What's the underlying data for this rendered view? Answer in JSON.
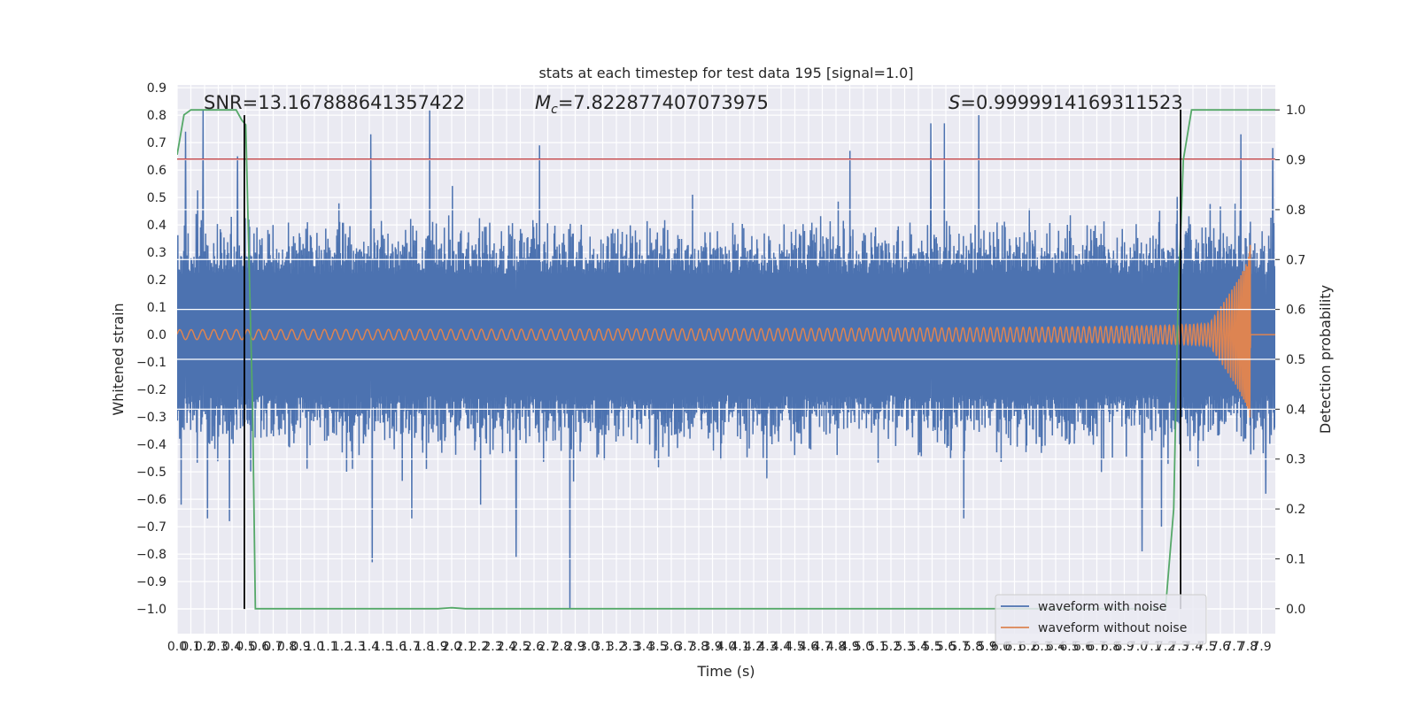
{
  "chart_data": {
    "type": "line",
    "title": "stats at each timestep for test data 195 [signal=1.0]",
    "xlabel": "Time (s)",
    "ylabel": "Whitened strain",
    "ylabel_right": "Detection probability",
    "xlim": [
      0,
      8
    ],
    "ylim": [
      -1.09,
      0.91
    ],
    "ylim_right": [
      -0.05,
      1.05
    ],
    "x_ticks": [
      0.0,
      0.1,
      0.2,
      0.3,
      0.4,
      0.5,
      0.6,
      0.7,
      0.8,
      0.9,
      1.0,
      1.1,
      1.2,
      1.3,
      1.4,
      1.5,
      1.6,
      1.7,
      1.8,
      1.9,
      2.0,
      2.1,
      2.2,
      2.3,
      2.4,
      2.5,
      2.6,
      2.7,
      2.8,
      2.9,
      3.0,
      3.1,
      3.2,
      3.3,
      3.4,
      3.5,
      3.6,
      3.7,
      3.8,
      3.9,
      4.0,
      4.1,
      4.2,
      4.3,
      4.4,
      4.5,
      4.6,
      4.7,
      4.8,
      4.9,
      5.0,
      5.1,
      5.2,
      5.3,
      5.4,
      5.5,
      5.6,
      5.7,
      5.8,
      5.9,
      6.0,
      6.1,
      6.2,
      6.3,
      6.4,
      6.5,
      6.6,
      6.7,
      6.8,
      6.9,
      7.0,
      7.1,
      7.2,
      7.3,
      7.4,
      7.5,
      7.6,
      7.7,
      7.8,
      7.9
    ],
    "y_ticks": [
      "0.9",
      "0.8",
      "0.7",
      "0.6",
      "0.5",
      "0.4",
      "0.3",
      "0.2",
      "0.1",
      "0.0",
      "−0.1",
      "−0.2",
      "−0.3",
      "−0.4",
      "−0.5",
      "−0.6",
      "−0.7",
      "−0.8",
      "−0.9",
      "−1.0"
    ],
    "y_tick_values": [
      0.9,
      0.8,
      0.7,
      0.6,
      0.5,
      0.4,
      0.3,
      0.2,
      0.1,
      0.0,
      -0.1,
      -0.2,
      -0.3,
      -0.4,
      -0.5,
      -0.6,
      -0.7,
      -0.8,
      -0.9,
      -1.0
    ],
    "y_ticks_right": [
      "1.0",
      "0.9",
      "0.8",
      "0.7",
      "0.6",
      "0.5",
      "0.4",
      "0.3",
      "0.2",
      "0.1",
      "0.0"
    ],
    "y_tick_values_right": [
      1.0,
      0.9,
      0.8,
      0.7,
      0.6,
      0.5,
      0.4,
      0.3,
      0.2,
      0.1,
      0.0
    ],
    "grid": true,
    "legend_position": "bottom-right",
    "annotations": {
      "snr": "SNR=13.167888641357422",
      "mc_symbol": "M",
      "mc_sub": "c",
      "mc_value": "=7.822877407073975",
      "s_symbol": "S",
      "s_value": "=0.9999914169311523"
    },
    "threshold": {
      "y": 0.64,
      "color": "#c44e52"
    },
    "vlines": [
      {
        "x": 0.49,
        "y_from": -1.0,
        "y_to": 0.8
      },
      {
        "x": 7.31,
        "y_from": -1.0,
        "y_to": 0.82
      }
    ],
    "series": [
      {
        "name": "waveform with noise",
        "color": "#4c72b0",
        "description": "noisy whitened strain, roughly ±0.45 envelope with spikes",
        "spikes": [
          [
            0.03,
            -0.62
          ],
          [
            0.06,
            0.74
          ],
          [
            0.19,
            0.82
          ],
          [
            0.22,
            -0.67
          ],
          [
            0.38,
            -0.68
          ],
          [
            0.44,
            0.65
          ],
          [
            1.41,
            0.73
          ],
          [
            1.42,
            -0.83
          ],
          [
            1.84,
            0.82
          ],
          [
            1.71,
            -0.67
          ],
          [
            2.47,
            -0.81
          ],
          [
            2.64,
            0.69
          ],
          [
            2.86,
            -1.0
          ],
          [
            4.9,
            0.67
          ],
          [
            5.49,
            0.77
          ],
          [
            5.59,
            0.77
          ],
          [
            5.73,
            -0.67
          ],
          [
            5.84,
            0.8
          ],
          [
            7.03,
            -0.79
          ],
          [
            7.17,
            -0.7
          ],
          [
            7.75,
            0.73
          ],
          [
            7.93,
            -0.58
          ],
          [
            7.98,
            0.68
          ]
        ]
      },
      {
        "name": "waveform without noise",
        "color": "#dd8452",
        "description": "chirp signal, amplitude grows until merger near t=7.82 s",
        "merger_x": 7.82,
        "end_x": 8.0,
        "max_amplitude": 0.33
      },
      {
        "name": "detection probability",
        "color": "#55a868",
        "axis": "right",
        "points": [
          [
            0.0,
            0.91
          ],
          [
            0.05,
            0.99
          ],
          [
            0.1,
            1.0
          ],
          [
            0.2,
            1.0
          ],
          [
            0.3,
            1.0
          ],
          [
            0.43,
            1.0
          ],
          [
            0.47,
            0.98
          ],
          [
            0.5,
            0.97
          ],
          [
            0.55,
            0.4
          ],
          [
            0.57,
            0.0
          ],
          [
            0.6,
            0.0
          ],
          [
            1.9,
            0.0
          ],
          [
            2.0,
            0.002
          ],
          [
            2.1,
            0.0
          ],
          [
            7.2,
            0.0
          ],
          [
            7.26,
            0.2
          ],
          [
            7.29,
            0.6
          ],
          [
            7.33,
            0.9
          ],
          [
            7.39,
            1.0
          ],
          [
            8.0,
            1.0
          ]
        ]
      }
    ]
  }
}
